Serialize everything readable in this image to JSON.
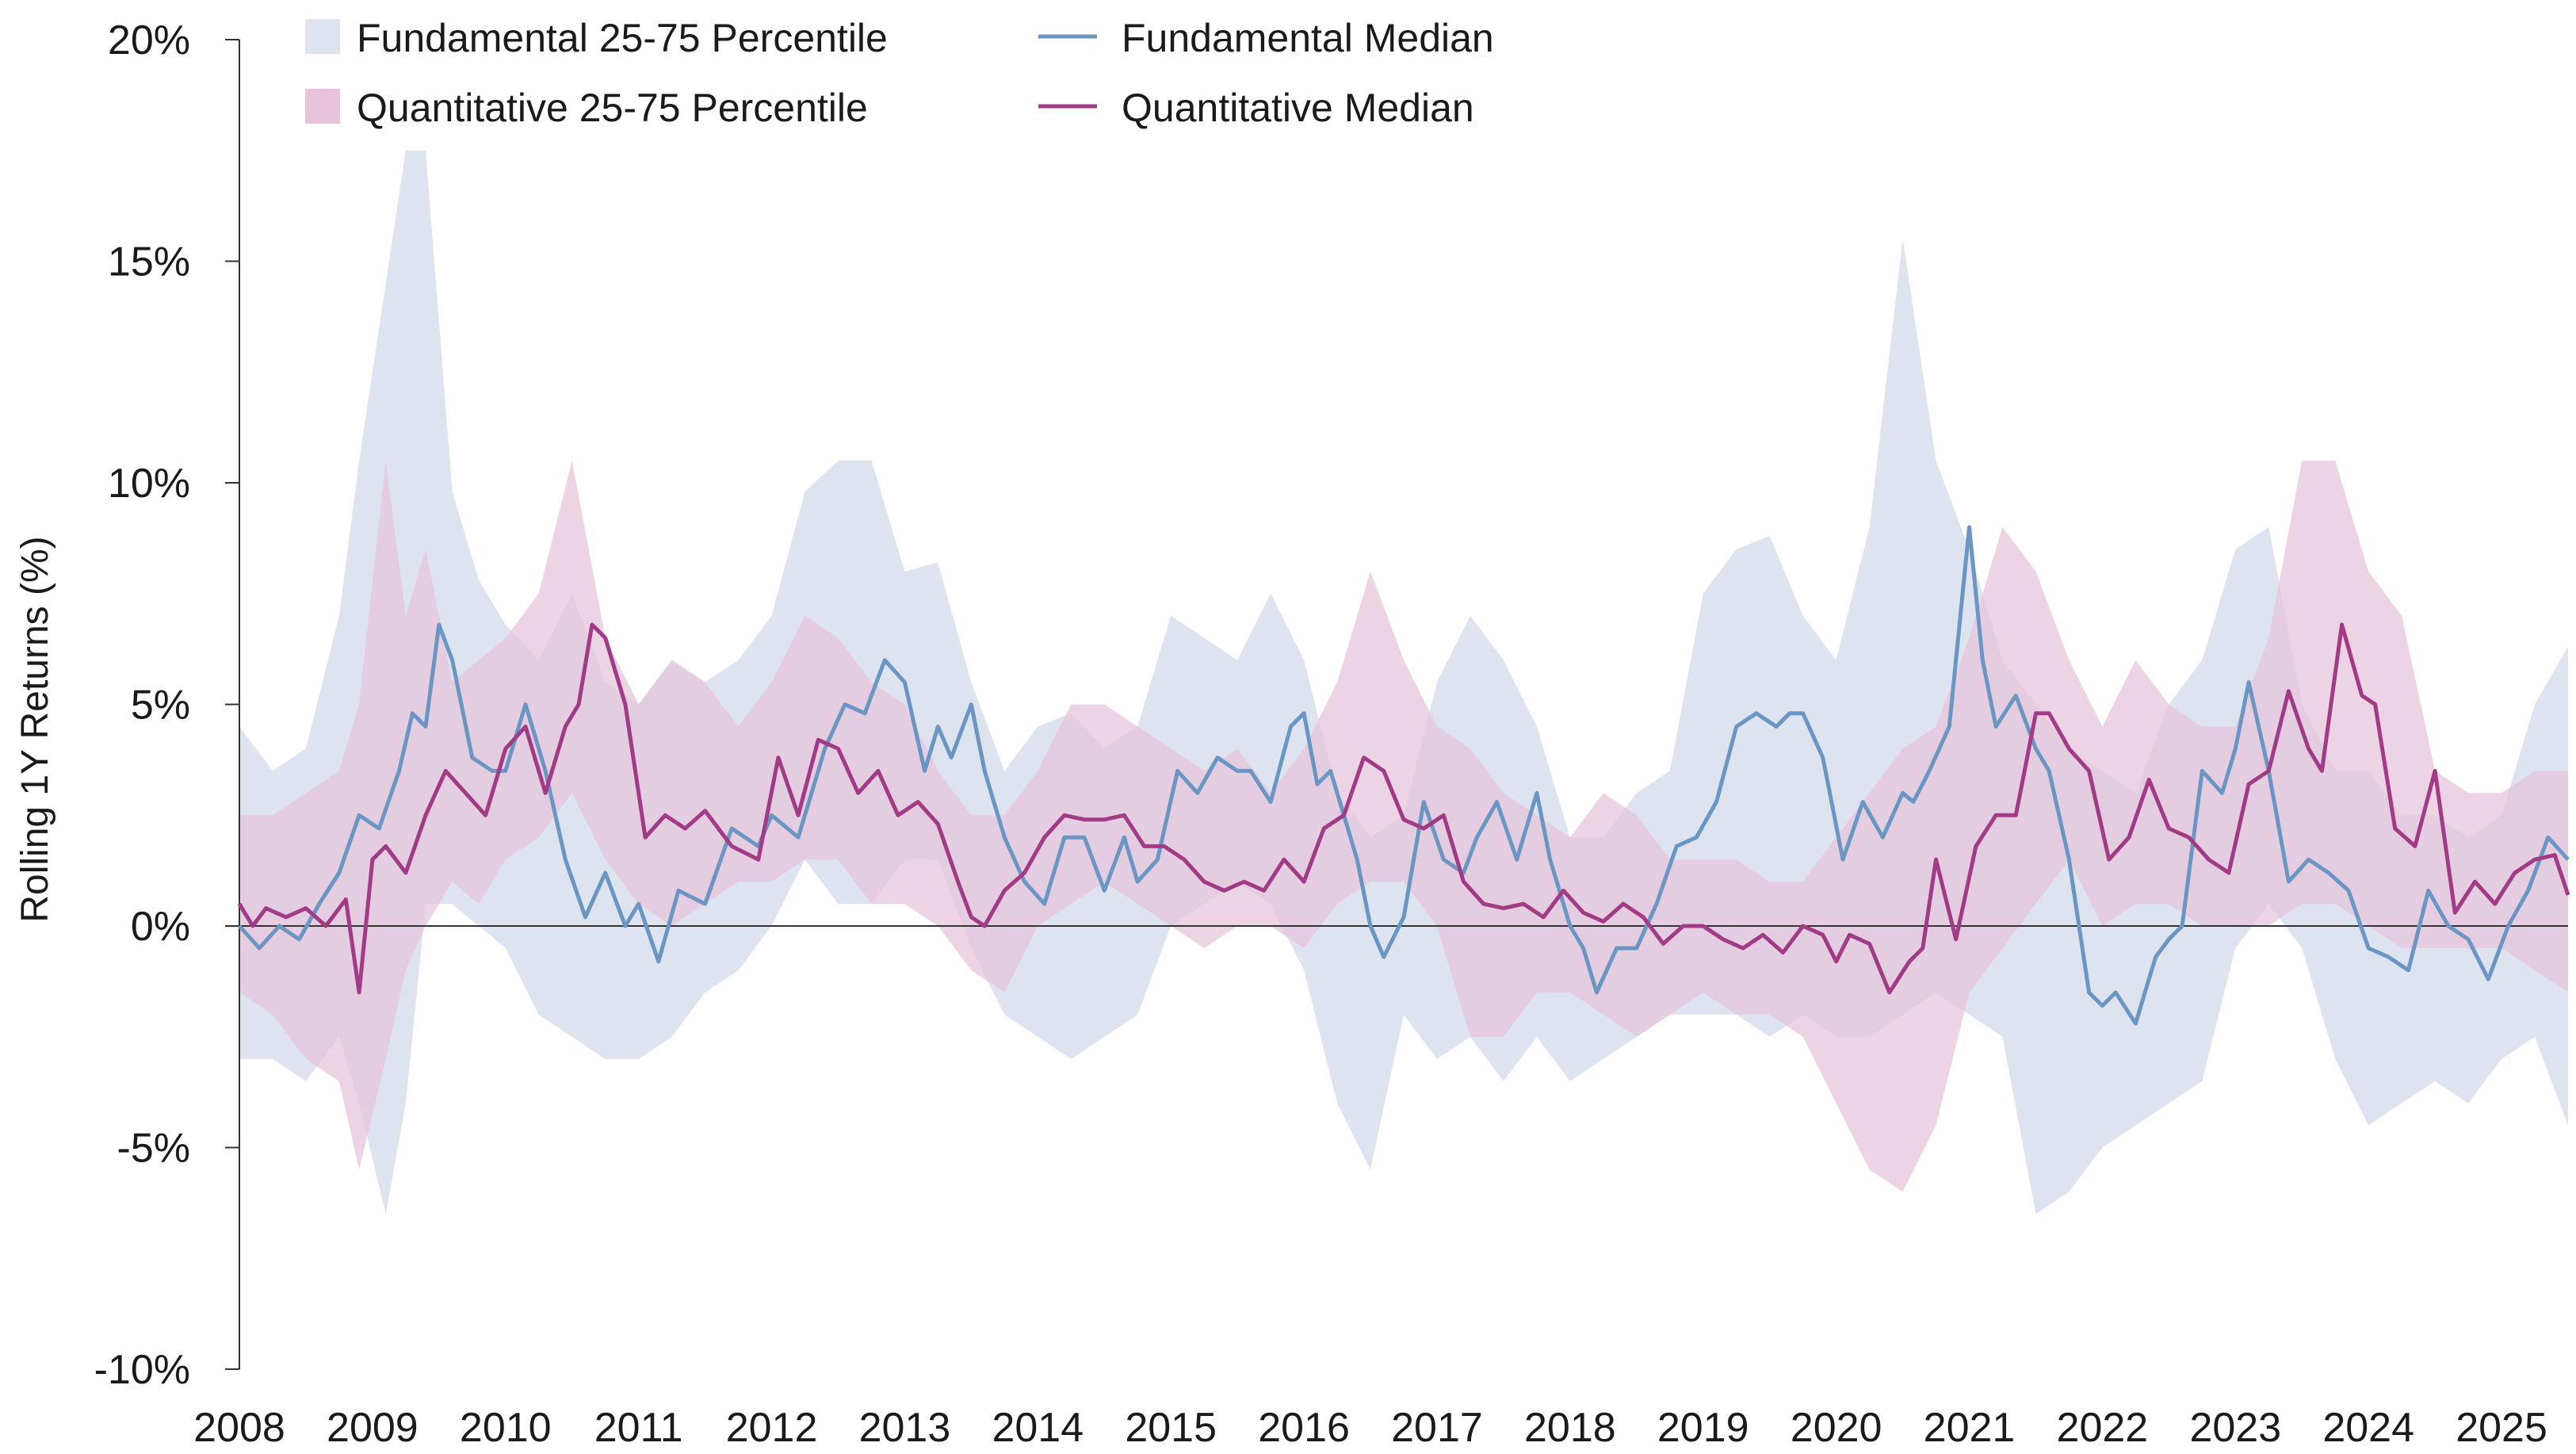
{
  "chart_data": {
    "type": "area",
    "ylabel": "Rolling 1Y Returns (%)",
    "xlabel": "",
    "ylim": [
      -10,
      20
    ],
    "yticks": [
      20,
      15,
      10,
      5,
      0,
      -5,
      -10
    ],
    "ytick_labels": [
      "20%",
      "15%",
      "10%",
      "5%",
      "0%",
      "-5%",
      "-10%"
    ],
    "xlim": [
      2008,
      2025.5
    ],
    "xticks": [
      2008,
      2009,
      2010,
      2011,
      2012,
      2013,
      2014,
      2015,
      2016,
      2017,
      2018,
      2019,
      2020,
      2021,
      2022,
      2023,
      2024,
      2025
    ],
    "xtick_labels": [
      "2008",
      "2009",
      "2010",
      "2011",
      "2012",
      "2013",
      "2014",
      "2015",
      "2016",
      "2017",
      "2018",
      "2019",
      "2020",
      "2021",
      "2022",
      "2023",
      "2024",
      "2025"
    ],
    "grid": false,
    "zero_line": true,
    "legend_position": "top-left",
    "colors": {
      "fundamental_band": "#dde4ef",
      "quantitative_band": "#e6c3da",
      "overlap_band": "#c8a9c8",
      "fundamental_line": "#6b96c4",
      "quantitative_line": "#a23b86",
      "axis": "#333333"
    },
    "series": [
      {
        "name": "Fundamental 25-75 Percentile",
        "kind": "band",
        "x": [
          2008.0,
          2008.25,
          2008.5,
          2008.75,
          2008.9,
          2009.1,
          2009.25,
          2009.4,
          2009.6,
          2009.8,
          2010.0,
          2010.25,
          2010.5,
          2010.75,
          2011.0,
          2011.25,
          2011.5,
          2011.75,
          2012.0,
          2012.25,
          2012.5,
          2012.75,
          2013.0,
          2013.25,
          2013.5,
          2013.75,
          2014.0,
          2014.25,
          2014.5,
          2014.75,
          2015.0,
          2015.25,
          2015.5,
          2015.75,
          2016.0,
          2016.25,
          2016.5,
          2016.75,
          2017.0,
          2017.25,
          2017.5,
          2017.75,
          2018.0,
          2018.25,
          2018.5,
          2018.75,
          2019.0,
          2019.25,
          2019.5,
          2019.75,
          2020.0,
          2020.25,
          2020.5,
          2020.75,
          2021.0,
          2021.25,
          2021.5,
          2021.75,
          2022.0,
          2022.25,
          2022.5,
          2022.75,
          2023.0,
          2023.25,
          2023.5,
          2023.75,
          2024.0,
          2024.25,
          2024.5,
          2024.75,
          2025.0,
          2025.25,
          2025.5
        ],
        "upper": [
          4.5,
          3.5,
          4.0,
          7.0,
          10.5,
          14.5,
          17.5,
          17.5,
          9.8,
          7.8,
          6.8,
          6.0,
          7.5,
          5.5,
          5.0,
          6.0,
          5.5,
          6.0,
          7.0,
          9.8,
          10.5,
          10.5,
          8.0,
          8.2,
          5.5,
          3.5,
          4.5,
          4.8,
          4.0,
          4.5,
          7.0,
          6.5,
          6.0,
          7.5,
          6.0,
          3.0,
          2.0,
          2.5,
          5.5,
          7.0,
          6.0,
          4.5,
          2.0,
          2.0,
          3.0,
          3.5,
          7.5,
          8.5,
          8.8,
          7.0,
          6.0,
          9.0,
          15.5,
          10.5,
          8.5,
          6.0,
          5.0,
          4.0,
          3.5,
          3.0,
          5.0,
          6.0,
          8.5,
          9.0,
          5.0,
          3.5,
          3.5,
          2.5,
          2.5,
          2.0,
          2.5,
          5.0,
          6.3
        ],
        "lower": [
          -3.0,
          -3.0,
          -3.5,
          -2.5,
          -4.0,
          -6.5,
          -4.0,
          0.5,
          0.5,
          0.0,
          -0.5,
          -2.0,
          -2.5,
          -3.0,
          -3.0,
          -2.5,
          -1.5,
          -1.0,
          0.0,
          1.5,
          0.5,
          0.5,
          1.5,
          1.5,
          -0.5,
          -2.0,
          -2.5,
          -3.0,
          -2.5,
          -2.0,
          0.0,
          0.5,
          1.0,
          0.5,
          -1.0,
          -4.0,
          -5.5,
          -2.0,
          -3.0,
          -2.5,
          -3.5,
          -2.5,
          -3.5,
          -3.0,
          -2.5,
          -2.0,
          -2.0,
          -2.0,
          -2.5,
          -2.0,
          -2.5,
          -2.5,
          -2.0,
          -1.5,
          -2.0,
          -2.5,
          -6.5,
          -6.0,
          -5.0,
          -4.5,
          -4.0,
          -3.5,
          -0.5,
          0.5,
          -0.5,
          -3.0,
          -4.5,
          -4.0,
          -3.5,
          -4.0,
          -3.0,
          -2.5,
          -4.5
        ]
      },
      {
        "name": "Quantitative 25-75 Percentile",
        "kind": "band",
        "x": [
          2008.0,
          2008.25,
          2008.5,
          2008.75,
          2008.9,
          2009.1,
          2009.25,
          2009.4,
          2009.6,
          2009.8,
          2010.0,
          2010.25,
          2010.5,
          2010.75,
          2011.0,
          2011.25,
          2011.5,
          2011.75,
          2012.0,
          2012.25,
          2012.5,
          2012.75,
          2013.0,
          2013.25,
          2013.5,
          2013.75,
          2014.0,
          2014.25,
          2014.5,
          2014.75,
          2015.0,
          2015.25,
          2015.5,
          2015.75,
          2016.0,
          2016.25,
          2016.5,
          2016.75,
          2017.0,
          2017.25,
          2017.5,
          2017.75,
          2018.0,
          2018.25,
          2018.5,
          2018.75,
          2019.0,
          2019.25,
          2019.5,
          2019.75,
          2020.0,
          2020.25,
          2020.5,
          2020.75,
          2021.0,
          2021.25,
          2021.5,
          2021.75,
          2022.0,
          2022.25,
          2022.5,
          2022.75,
          2023.0,
          2023.25,
          2023.5,
          2023.75,
          2024.0,
          2024.25,
          2024.5,
          2024.75,
          2025.0,
          2025.25,
          2025.5
        ],
        "upper": [
          2.5,
          2.5,
          3.0,
          3.5,
          5.0,
          10.5,
          7.0,
          8.5,
          5.5,
          6.0,
          6.5,
          7.5,
          10.5,
          6.5,
          5.0,
          6.0,
          5.5,
          4.5,
          5.5,
          7.0,
          6.5,
          5.5,
          5.0,
          3.5,
          2.5,
          2.5,
          3.5,
          5.0,
          5.0,
          4.5,
          4.0,
          3.5,
          4.0,
          3.0,
          4.0,
          5.5,
          8.0,
          6.0,
          4.5,
          4.0,
          3.0,
          2.5,
          2.0,
          3.0,
          2.5,
          1.5,
          1.5,
          1.5,
          1.0,
          1.0,
          2.0,
          3.0,
          4.0,
          4.5,
          6.5,
          9.0,
          8.0,
          6.0,
          4.5,
          6.0,
          5.0,
          4.5,
          4.5,
          6.5,
          10.5,
          10.5,
          8.0,
          7.0,
          3.5,
          3.0,
          3.0,
          3.5,
          3.5
        ],
        "lower": [
          -1.5,
          -2.0,
          -3.0,
          -3.5,
          -5.5,
          -3.0,
          -1.0,
          0.0,
          1.0,
          0.5,
          1.5,
          2.0,
          3.0,
          1.5,
          0.5,
          0.0,
          0.5,
          1.0,
          1.0,
          1.5,
          1.5,
          0.5,
          0.5,
          0.0,
          -1.0,
          -1.5,
          0.0,
          0.5,
          1.0,
          0.5,
          0.0,
          -0.5,
          0.0,
          0.0,
          -0.5,
          0.5,
          1.0,
          1.0,
          0.0,
          -2.5,
          -2.5,
          -1.5,
          -1.5,
          -2.0,
          -2.5,
          -2.0,
          -1.5,
          -2.0,
          -2.0,
          -2.5,
          -4.0,
          -5.5,
          -6.0,
          -4.5,
          -1.5,
          -0.5,
          0.5,
          1.5,
          0.0,
          0.5,
          0.5,
          0.0,
          0.0,
          0.0,
          0.5,
          0.5,
          0.0,
          -0.5,
          -0.5,
          -0.5,
          -0.5,
          -1.0,
          -1.5
        ]
      },
      {
        "name": "Fundamental Median",
        "kind": "line",
        "x": [
          2008.0,
          2008.15,
          2008.3,
          2008.45,
          2008.6,
          2008.75,
          2008.9,
          2009.05,
          2009.2,
          2009.3,
          2009.4,
          2009.5,
          2009.6,
          2009.75,
          2009.9,
          2010.0,
          2010.15,
          2010.3,
          2010.45,
          2010.6,
          2010.75,
          2010.9,
          2011.0,
          2011.15,
          2011.3,
          2011.5,
          2011.7,
          2011.9,
          2012.0,
          2012.2,
          2012.4,
          2012.55,
          2012.7,
          2012.85,
          2013.0,
          2013.15,
          2013.25,
          2013.35,
          2013.5,
          2013.6,
          2013.75,
          2013.9,
          2014.05,
          2014.2,
          2014.35,
          2014.5,
          2014.65,
          2014.75,
          2014.9,
          2015.05,
          2015.2,
          2015.35,
          2015.5,
          2015.6,
          2015.75,
          2015.9,
          2016.0,
          2016.1,
          2016.2,
          2016.3,
          2016.4,
          2016.5,
          2016.6,
          2016.75,
          2016.9,
          2017.05,
          2017.2,
          2017.3,
          2017.45,
          2017.6,
          2017.75,
          2017.85,
          2018.0,
          2018.1,
          2018.2,
          2018.35,
          2018.5,
          2018.65,
          2018.8,
          2018.95,
          2019.1,
          2019.25,
          2019.4,
          2019.55,
          2019.65,
          2019.75,
          2019.9,
          2020.05,
          2020.2,
          2020.35,
          2020.5,
          2020.58,
          2020.7,
          2020.85,
          2021.0,
          2021.1,
          2021.2,
          2021.35,
          2021.5,
          2021.6,
          2021.75,
          2021.9,
          2022.0,
          2022.1,
          2022.25,
          2022.4,
          2022.5,
          2022.6,
          2022.75,
          2022.9,
          2023.0,
          2023.1,
          2023.25,
          2023.4,
          2023.55,
          2023.7,
          2023.85,
          2024.0,
          2024.15,
          2024.3,
          2024.45,
          2024.6,
          2024.75,
          2024.9,
          2025.05,
          2025.2,
          2025.35,
          2025.5
        ],
        "values": [
          0.0,
          -0.5,
          0.0,
          -0.3,
          0.5,
          1.2,
          2.5,
          2.2,
          3.5,
          4.8,
          4.5,
          6.8,
          6.0,
          3.8,
          3.5,
          3.5,
          5.0,
          3.5,
          1.5,
          0.2,
          1.2,
          0.0,
          0.5,
          -0.8,
          0.8,
          0.5,
          2.2,
          1.8,
          2.5,
          2.0,
          4.0,
          5.0,
          4.8,
          6.0,
          5.5,
          3.5,
          4.5,
          3.8,
          5.0,
          3.5,
          2.0,
          1.0,
          0.5,
          2.0,
          2.0,
          0.8,
          2.0,
          1.0,
          1.5,
          3.5,
          3.0,
          3.8,
          3.5,
          3.5,
          2.8,
          4.5,
          4.8,
          3.2,
          3.5,
          2.5,
          1.5,
          0.0,
          -0.7,
          0.2,
          2.8,
          1.5,
          1.2,
          2.0,
          2.8,
          1.5,
          3.0,
          1.5,
          0.0,
          -0.5,
          -1.5,
          -0.5,
          -0.5,
          0.5,
          1.8,
          2.0,
          2.8,
          4.5,
          4.8,
          4.5,
          4.8,
          4.8,
          3.8,
          1.5,
          2.8,
          2.0,
          3.0,
          2.8,
          3.5,
          4.5,
          9.0,
          6.0,
          4.5,
          5.2,
          4.0,
          3.5,
          1.5,
          -1.5,
          -1.8,
          -1.5,
          -2.2,
          -0.7,
          -0.3,
          0.0,
          3.5,
          3.0,
          4.0,
          5.5,
          3.5,
          1.0,
          1.5,
          1.2,
          0.8,
          -0.5,
          -0.7,
          -1.0,
          0.8,
          0.0,
          -0.3,
          -1.2,
          0.0,
          0.8,
          2.0,
          1.5
        ]
      },
      {
        "name": "Quantitative Median",
        "kind": "line",
        "x": [
          2008.0,
          2008.1,
          2008.2,
          2008.35,
          2008.5,
          2008.65,
          2008.8,
          2008.9,
          2009.0,
          2009.1,
          2009.25,
          2009.4,
          2009.55,
          2009.7,
          2009.85,
          2010.0,
          2010.15,
          2010.3,
          2010.45,
          2010.55,
          2010.65,
          2010.75,
          2010.9,
          2011.05,
          2011.2,
          2011.35,
          2011.5,
          2011.7,
          2011.9,
          2012.05,
          2012.2,
          2012.35,
          2012.5,
          2012.65,
          2012.8,
          2012.95,
          2013.1,
          2013.25,
          2013.4,
          2013.5,
          2013.6,
          2013.75,
          2013.9,
          2014.05,
          2014.2,
          2014.35,
          2014.5,
          2014.65,
          2014.8,
          2014.95,
          2015.1,
          2015.25,
          2015.4,
          2015.55,
          2015.7,
          2015.85,
          2016.0,
          2016.15,
          2016.3,
          2016.45,
          2016.6,
          2016.75,
          2016.9,
          2017.05,
          2017.2,
          2017.35,
          2017.5,
          2017.65,
          2017.8,
          2017.95,
          2018.1,
          2018.25,
          2018.4,
          2018.55,
          2018.7,
          2018.85,
          2019.0,
          2019.15,
          2019.3,
          2019.45,
          2019.6,
          2019.75,
          2019.9,
          2020.0,
          2020.1,
          2020.25,
          2020.4,
          2020.55,
          2020.65,
          2020.75,
          2020.9,
          2021.05,
          2021.2,
          2021.35,
          2021.5,
          2021.6,
          2021.75,
          2021.9,
          2022.05,
          2022.2,
          2022.35,
          2022.5,
          2022.65,
          2022.8,
          2022.95,
          2023.1,
          2023.25,
          2023.4,
          2023.55,
          2023.65,
          2023.8,
          2023.95,
          2024.05,
          2024.2,
          2024.35,
          2024.5,
          2024.65,
          2024.8,
          2024.95,
          2025.1,
          2025.25,
          2025.4,
          2025.5
        ],
        "values": [
          0.5,
          0.0,
          0.4,
          0.2,
          0.4,
          0.0,
          0.6,
          -1.5,
          1.5,
          1.8,
          1.2,
          2.5,
          3.5,
          3.0,
          2.5,
          4.0,
          4.5,
          3.0,
          4.5,
          5.0,
          6.8,
          6.5,
          5.0,
          2.0,
          2.5,
          2.2,
          2.6,
          1.8,
          1.5,
          3.8,
          2.5,
          4.2,
          4.0,
          3.0,
          3.5,
          2.5,
          2.8,
          2.3,
          1.0,
          0.2,
          0.0,
          0.8,
          1.2,
          2.0,
          2.5,
          2.4,
          2.4,
          2.5,
          1.8,
          1.8,
          1.5,
          1.0,
          0.8,
          1.0,
          0.8,
          1.5,
          1.0,
          2.2,
          2.5,
          3.8,
          3.5,
          2.4,
          2.2,
          2.5,
          1.0,
          0.5,
          0.4,
          0.5,
          0.2,
          0.8,
          0.3,
          0.1,
          0.5,
          0.2,
          -0.4,
          0.0,
          0.0,
          -0.3,
          -0.5,
          -0.2,
          -0.6,
          0.0,
          -0.2,
          -0.8,
          -0.2,
          -0.4,
          -1.5,
          -0.8,
          -0.5,
          1.5,
          -0.3,
          1.8,
          2.5,
          2.5,
          4.8,
          4.8,
          4.0,
          3.5,
          1.5,
          2.0,
          3.3,
          2.2,
          2.0,
          1.5,
          1.2,
          3.2,
          3.5,
          5.3,
          4.0,
          3.5,
          6.8,
          5.2,
          5.0,
          2.2,
          1.8,
          3.5,
          0.3,
          1.0,
          0.5,
          1.2,
          1.5,
          1.6,
          0.7
        ]
      }
    ]
  },
  "legend": [
    {
      "label": "Fundamental 25-75 Percentile",
      "kind": "band",
      "color": "#dde4ef"
    },
    {
      "label": "Quantitative 25-75 Percentile",
      "kind": "band",
      "color": "#e6c3da"
    },
    {
      "label": "Fundamental Median",
      "kind": "line",
      "color": "#6b96c4"
    },
    {
      "label": "Quantitative Median",
      "kind": "line",
      "color": "#a23b86"
    }
  ]
}
